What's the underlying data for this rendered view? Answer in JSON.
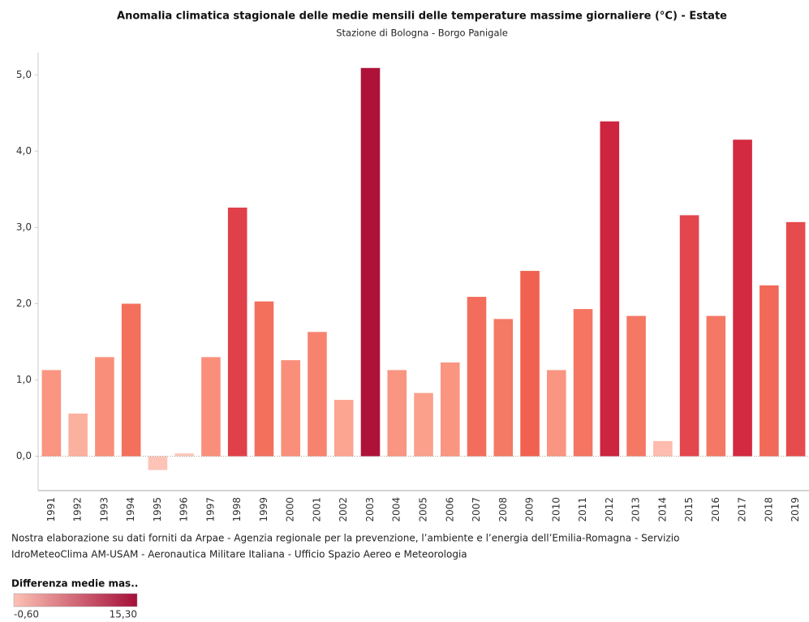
{
  "chart_data": {
    "type": "bar",
    "title": "Anomalia climatica stagionale delle medie mensili delle temperature massime giornaliere (°C) - Estate",
    "subtitle": "Stazione di Bologna - Borgo Panigale",
    "categories": [
      "1991",
      "1992",
      "1993",
      "1994",
      "1995",
      "1996",
      "1997",
      "1998",
      "1999",
      "2000",
      "2001",
      "2002",
      "2003",
      "2004",
      "2005",
      "2006",
      "2007",
      "2008",
      "2009",
      "2010",
      "2011",
      "2012",
      "2013",
      "2014",
      "2015",
      "2016",
      "2017",
      "2018",
      "2019"
    ],
    "values": [
      1.13,
      0.56,
      1.3,
      2.0,
      -0.18,
      0.04,
      1.3,
      3.26,
      2.03,
      1.26,
      1.63,
      0.74,
      5.09,
      1.13,
      0.83,
      1.23,
      2.09,
      1.8,
      2.43,
      1.13,
      1.93,
      4.39,
      1.84,
      0.2,
      3.16,
      1.84,
      4.15,
      2.24,
      3.07
    ],
    "colors": [
      "#f99580",
      "#fcb09e",
      "#f98f7a",
      "#f3705d",
      "#fcc3b6",
      "#fdc9bd",
      "#f98f7a",
      "#e0404a",
      "#f3705d",
      "#f98f7a",
      "#f7836f",
      "#fca590",
      "#ae1238",
      "#f99580",
      "#fba08b",
      "#f99580",
      "#f26d5b",
      "#f47a65",
      "#f0624f",
      "#f99580",
      "#f47562",
      "#cd2440",
      "#f47864",
      "#fdbcae",
      "#e3464c",
      "#f47864",
      "#d42a41",
      "#f16957",
      "#e64b4d"
    ],
    "ylim": [
      -0.45,
      5.29
    ],
    "yticks": [
      {
        "value": 0,
        "label": "0,0"
      },
      {
        "value": 1,
        "label": "1,0"
      },
      {
        "value": 2,
        "label": "2,0"
      },
      {
        "value": 3,
        "label": "3,0"
      },
      {
        "value": 4,
        "label": "4,0"
      },
      {
        "value": 5,
        "label": "5,0"
      }
    ],
    "source": [
      "Nostra elaborazione su dati forniti da Arpae - Agenzia regionale per la prevenzione, l’ambiente e l’energia dell’Emilia-Romagna - Servizio",
      "IdroMeteoClima AM-USAM - Aeronautica Militare Italiana - Ufficio Spazio Aereo e Meteorologia"
    ],
    "color_legend": {
      "title": "Differenza medie mas..",
      "colors": [
        "#fdc1b4",
        "#a50f3a"
      ],
      "min": {
        "value": -0.6,
        "label": "-0,60"
      },
      "max": {
        "value": 15.3,
        "label": "15,30"
      }
    }
  }
}
